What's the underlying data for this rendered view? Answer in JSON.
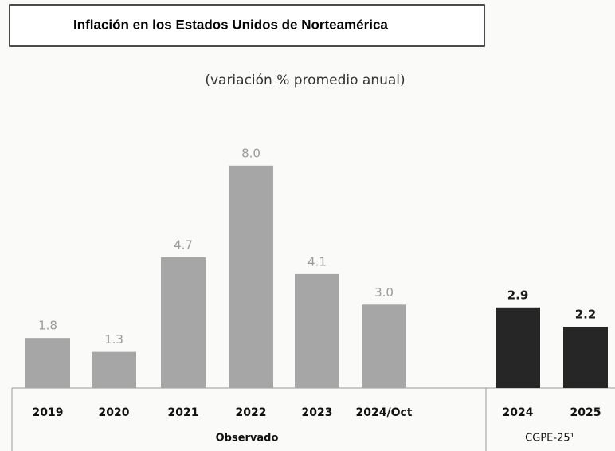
{
  "chart_data": {
    "type": "bar",
    "title": "Inflación en los Estados Unidos de Norteamérica",
    "subtitle": "(variación % promedio anual)",
    "categories": [
      "2019",
      "2020",
      "2021",
      "2022",
      "2023",
      "2024/Oct",
      "2024",
      "2025"
    ],
    "series": [
      {
        "name": "Observado",
        "color": "#a6a6a6",
        "label_color": "#9a9a9a",
        "values": [
          1.8,
          1.3,
          4.7,
          8.0,
          4.1,
          3.0,
          null,
          null
        ],
        "value_labels": [
          "1.8",
          "1.3",
          "4.7",
          "8.0",
          "4.1",
          "3.0",
          null,
          null
        ]
      },
      {
        "name": "CGPE-25¹",
        "color": "#262626",
        "label_color": "#1a1a1a",
        "values": [
          null,
          null,
          null,
          null,
          null,
          null,
          2.9,
          2.2
        ],
        "value_labels": [
          null,
          null,
          null,
          null,
          null,
          null,
          "2.9",
          "2.2"
        ]
      }
    ]
  }
}
